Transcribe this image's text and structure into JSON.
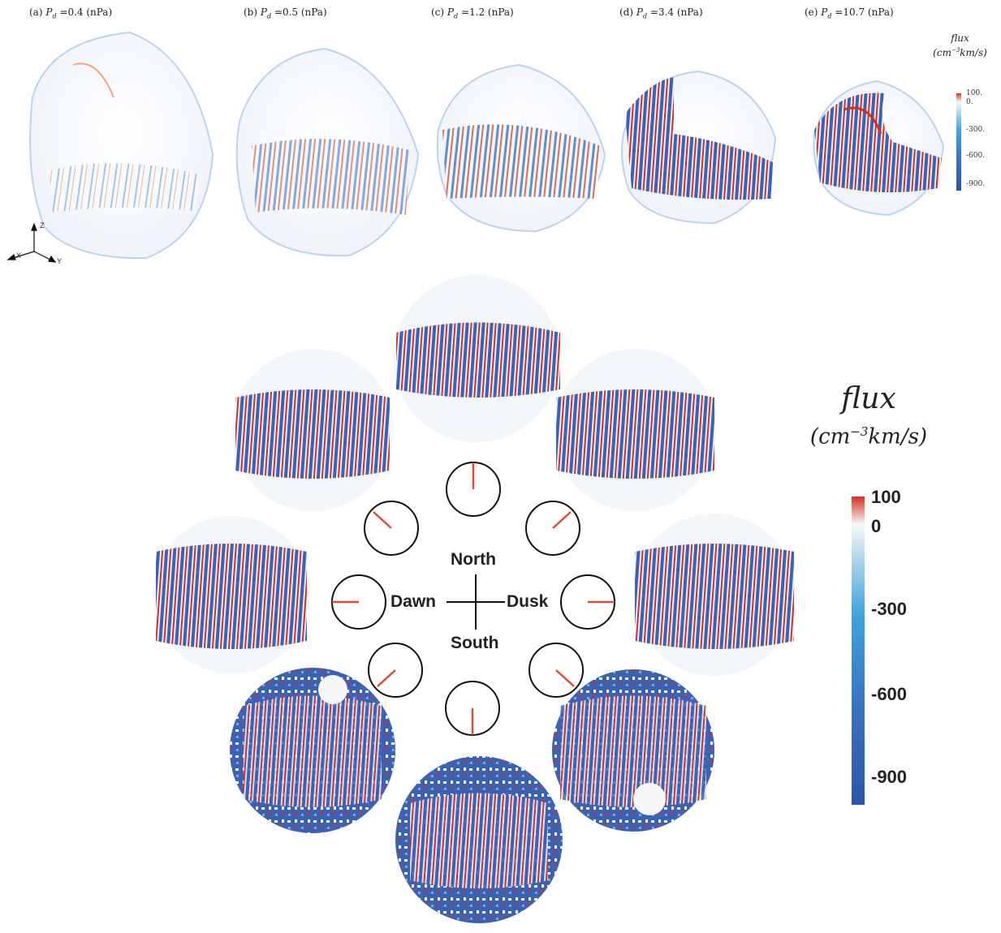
{
  "top_panels": [
    {
      "letter": "(a)",
      "pd_symbol": "P",
      "pd_sub": "d",
      "value_text": "=0.4 (nPa)"
    },
    {
      "letter": "(b)",
      "pd_symbol": "P",
      "pd_sub": "d",
      "value_text": "=0.5 (nPa)"
    },
    {
      "letter": "(c)",
      "pd_symbol": "P",
      "pd_sub": "d",
      "value_text": "=1.2 (nPa)"
    },
    {
      "letter": "(d)",
      "pd_symbol": "P",
      "pd_sub": "d",
      "value_text": "=3.4 (nPa)"
    },
    {
      "letter": "(e)",
      "pd_symbol": "P",
      "pd_sub": "d",
      "value_text": "=10.7 (nPa)"
    }
  ],
  "axes_triad": {
    "z": "Z",
    "x": "X",
    "y": "Y"
  },
  "small_legend": {
    "title": "flux",
    "unit_prefix": "(cm",
    "unit_exp": "−3",
    "unit_suffix": "km/s)",
    "ticks": [
      "100.",
      "0.",
      "-300.",
      "-600.",
      "-900."
    ]
  },
  "big_legend": {
    "title": "flux",
    "unit_prefix": "(cm",
    "unit_exp": "−3",
    "unit_suffix": "km/s)",
    "ticks": [
      "100",
      "0",
      "-300",
      "-600",
      "-900"
    ]
  },
  "compass": {
    "north": "North",
    "south": "South",
    "dawn": "Dawn",
    "dusk": "Dusk"
  },
  "colorscale": {
    "positive": "#d7301f",
    "zero": "#f7f7f7",
    "mid": "#3fa4dc",
    "negative": "#2c55a8"
  }
}
